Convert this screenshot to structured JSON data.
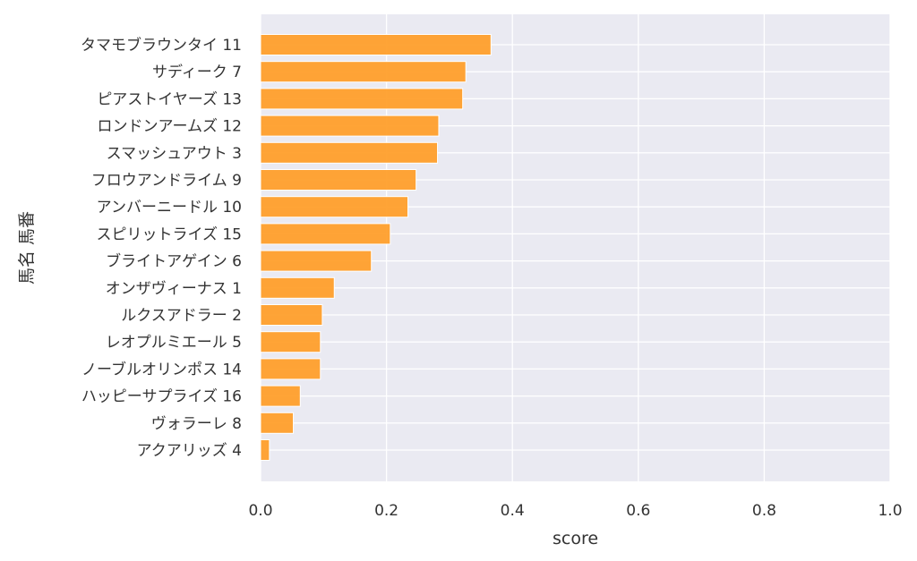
{
  "chart_data": {
    "type": "bar",
    "orientation": "horizontal",
    "xlabel": "score",
    "ylabel": "馬名 馬番",
    "xlim": [
      0.0,
      1.0
    ],
    "xticks": [
      "0.0",
      "0.2",
      "0.4",
      "0.6",
      "0.8",
      "1.0"
    ],
    "grid": true,
    "bar_color": "#ff9c26",
    "background_color": "#eaeaf2",
    "categories": [
      "タマモブラウンタイ 11",
      "サディーク 7",
      "ピアストイヤーズ 13",
      "ロンドンアームズ 12",
      "スマッシュアウト 3",
      "フロウアンドライム 9",
      "アンバーニードル 10",
      "スピリットライズ 15",
      "ブライトアゲイン 6",
      "オンザヴィーナス 1",
      "ルクスアドラー 2",
      "レオプルミエール 5",
      "ノーブルオリンポス 14",
      "ハッピーサプライズ 16",
      "ヴォラーレ 8",
      "アクアリッズ 4"
    ],
    "values": [
      0.366,
      0.326,
      0.321,
      0.283,
      0.281,
      0.247,
      0.234,
      0.206,
      0.176,
      0.117,
      0.098,
      0.095,
      0.095,
      0.063,
      0.052,
      0.014
    ]
  }
}
